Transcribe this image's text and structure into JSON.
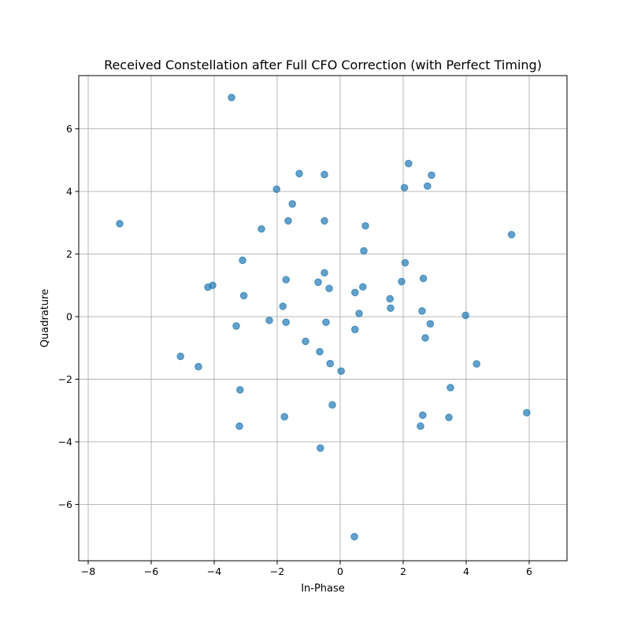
{
  "chart_data": {
    "type": "scatter",
    "title": "Received Constellation after Full CFO Correction (with Perfect Timing)",
    "xlabel": "In-Phase",
    "ylabel": "Quadrature",
    "xlim": [
      -8.3,
      7.2
    ],
    "ylim": [
      -7.8,
      7.7
    ],
    "xticks": [
      -8,
      -6,
      -4,
      -2,
      0,
      2,
      4,
      6
    ],
    "yticks": [
      -6,
      -4,
      -2,
      0,
      2,
      4,
      6
    ],
    "xtick_labels": [
      "−8",
      "−6",
      "−4",
      "−2",
      "0",
      "2",
      "4",
      "6"
    ],
    "ytick_labels": [
      "−6",
      "−4",
      "−2",
      "0",
      "2",
      "4",
      "6"
    ],
    "grid": true,
    "marker_color": "#1f77b4",
    "marker_alpha": 0.7,
    "points": [
      {
        "x": -3.45,
        "y": 7.0
      },
      {
        "x": -7.0,
        "y": 2.97
      },
      {
        "x": 2.17,
        "y": 4.89
      },
      {
        "x": 2.9,
        "y": 4.52
      },
      {
        "x": -1.3,
        "y": 4.57
      },
      {
        "x": -0.5,
        "y": 4.54
      },
      {
        "x": 2.04,
        "y": 4.12
      },
      {
        "x": 2.77,
        "y": 4.17
      },
      {
        "x": -2.02,
        "y": 4.07
      },
      {
        "x": -1.52,
        "y": 3.6
      },
      {
        "x": -1.65,
        "y": 3.06
      },
      {
        "x": -0.5,
        "y": 3.06
      },
      {
        "x": 0.8,
        "y": 2.9
      },
      {
        "x": -2.5,
        "y": 2.8
      },
      {
        "x": 5.44,
        "y": 2.62
      },
      {
        "x": 0.75,
        "y": 2.1
      },
      {
        "x": -3.1,
        "y": 1.8
      },
      {
        "x": 2.06,
        "y": 1.72
      },
      {
        "x": -0.5,
        "y": 1.4
      },
      {
        "x": 2.64,
        "y": 1.22
      },
      {
        "x": -1.72,
        "y": 1.18
      },
      {
        "x": 1.95,
        "y": 1.12
      },
      {
        "x": -0.7,
        "y": 1.1
      },
      {
        "x": -4.05,
        "y": 1.0
      },
      {
        "x": 0.72,
        "y": 0.95
      },
      {
        "x": -4.2,
        "y": 0.94
      },
      {
        "x": -0.35,
        "y": 0.9
      },
      {
        "x": 0.47,
        "y": 0.77
      },
      {
        "x": -3.06,
        "y": 0.67
      },
      {
        "x": 1.58,
        "y": 0.57
      },
      {
        "x": -1.82,
        "y": 0.33
      },
      {
        "x": 1.6,
        "y": 0.27
      },
      {
        "x": 2.6,
        "y": 0.18
      },
      {
        "x": 0.6,
        "y": 0.1
      },
      {
        "x": 3.98,
        "y": 0.04
      },
      {
        "x": -2.25,
        "y": -0.12
      },
      {
        "x": -1.72,
        "y": -0.18
      },
      {
        "x": -0.45,
        "y": -0.18
      },
      {
        "x": 2.86,
        "y": -0.23
      },
      {
        "x": -3.3,
        "y": -0.3
      },
      {
        "x": 0.47,
        "y": -0.41
      },
      {
        "x": 2.7,
        "y": -0.68
      },
      {
        "x": -1.1,
        "y": -0.79
      },
      {
        "x": -0.65,
        "y": -1.12
      },
      {
        "x": -5.07,
        "y": -1.27
      },
      {
        "x": -0.32,
        "y": -1.5
      },
      {
        "x": 4.33,
        "y": -1.51
      },
      {
        "x": -4.5,
        "y": -1.6
      },
      {
        "x": 0.03,
        "y": -1.74
      },
      {
        "x": 3.5,
        "y": -2.27
      },
      {
        "x": -3.18,
        "y": -2.34
      },
      {
        "x": -0.25,
        "y": -2.82
      },
      {
        "x": 5.92,
        "y": -3.07
      },
      {
        "x": 2.62,
        "y": -3.15
      },
      {
        "x": -1.77,
        "y": -3.2
      },
      {
        "x": 3.45,
        "y": -3.22
      },
      {
        "x": 2.55,
        "y": -3.5
      },
      {
        "x": -3.2,
        "y": -3.5
      },
      {
        "x": -0.63,
        "y": -4.2
      },
      {
        "x": 0.45,
        "y": -7.03
      }
    ]
  }
}
